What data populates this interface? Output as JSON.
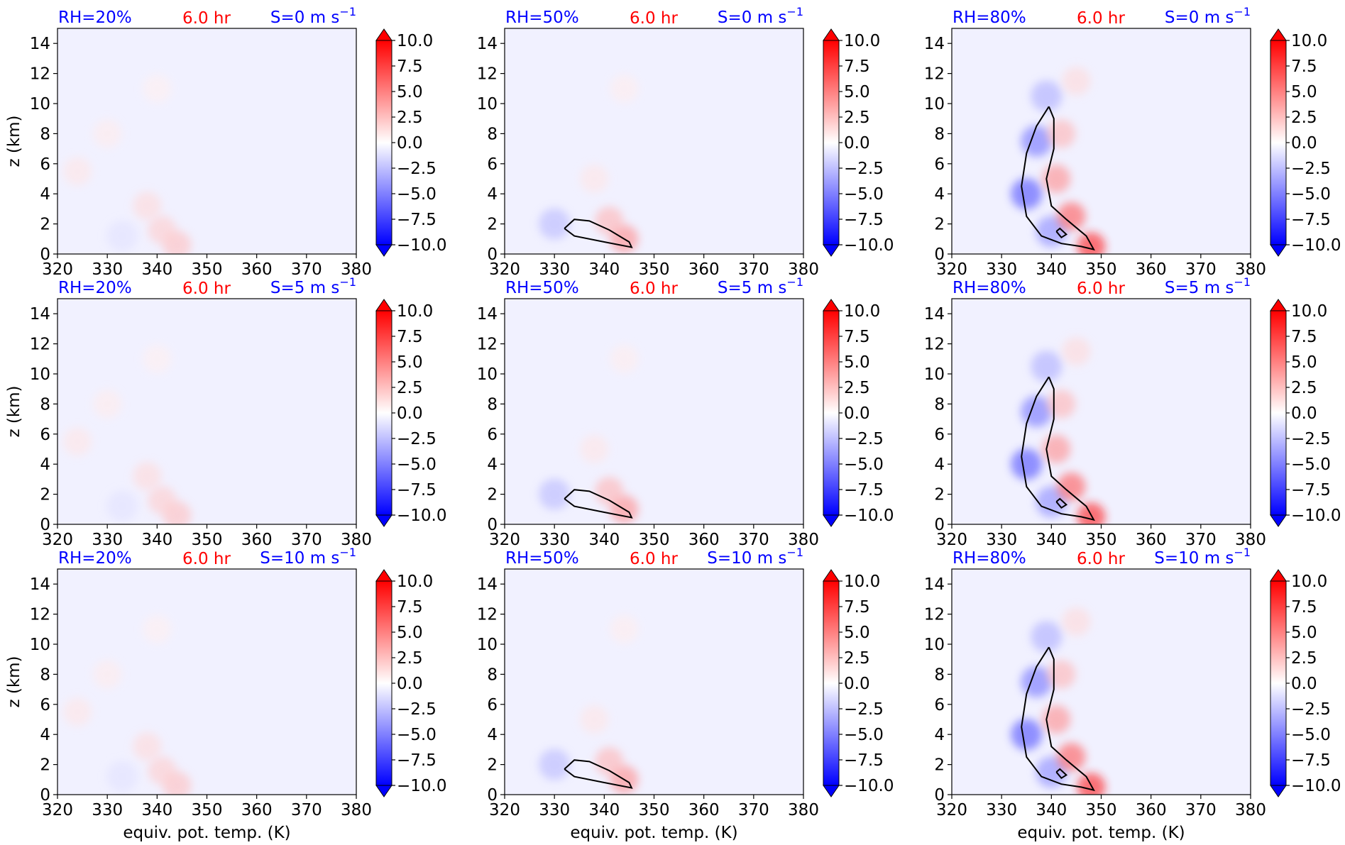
{
  "figure": {
    "xlabel": "equiv. pot. temp. (K)",
    "ylabel": "z (km)"
  },
  "colors": {
    "background_field": "#f1f1ff",
    "rh_label": "#0000ff",
    "time_label": "#ff0000",
    "shear_label": "#0000ff",
    "contour": "#000000",
    "colormap": "bwr"
  },
  "chart_data": {
    "type": "heatmap",
    "panel_grid": {
      "rows": 3,
      "cols": 3
    },
    "xlim": [
      320,
      380
    ],
    "ylim": [
      0,
      15
    ],
    "x_ticks": [
      320,
      330,
      340,
      350,
      360,
      370,
      380
    ],
    "x_tick_labels": [
      "320",
      "330",
      "340",
      "350",
      "360",
      "370",
      "380"
    ],
    "y_ticks": [
      0,
      2,
      4,
      6,
      8,
      10,
      12,
      14
    ],
    "y_tick_labels": [
      "0",
      "2",
      "4",
      "6",
      "8",
      "10",
      "12",
      "14"
    ],
    "colorbar": {
      "range": [
        -10,
        10
      ],
      "extend": "both",
      "ticks": [
        10,
        7.5,
        5,
        2.5,
        0,
        -2.5,
        -5,
        -7.5,
        -10
      ],
      "tick_labels": [
        "10.0",
        "7.5",
        "5.0",
        "2.5",
        "0.0",
        "−2.5",
        "−5.0",
        "−7.5",
        "−10.0"
      ]
    },
    "time_label": "6.0 hr",
    "rh_labels": [
      "RH=20%",
      "RH=50%",
      "RH=80%"
    ],
    "shear_rows": [
      {
        "prefix": "S=0 m s",
        "exp": "−1"
      },
      {
        "prefix": "S=5 m s",
        "exp": "−1"
      },
      {
        "prefix": "S=10 m s",
        "exp": "−1"
      }
    ],
    "features": {
      "RH=20%": {
        "warm_blobs": [
          {
            "theta": 344,
            "z": 0.6,
            "value": 2.5
          },
          {
            "theta": 341,
            "z": 1.6,
            "value": 2.0
          },
          {
            "theta": 338,
            "z": 3.2,
            "value": 1.5
          },
          {
            "theta": 324,
            "z": 5.5,
            "value": 1.0
          },
          {
            "theta": 330,
            "z": 8.0,
            "value": 0.8
          },
          {
            "theta": 340,
            "z": 11.0,
            "value": 0.6
          }
        ],
        "cool_blobs": [
          {
            "theta": 333,
            "z": 1.2,
            "value": -1.2
          }
        ],
        "contours": []
      },
      "RH=50%": {
        "warm_blobs": [
          {
            "theta": 344,
            "z": 1.0,
            "value": 4.5
          },
          {
            "theta": 341,
            "z": 2.2,
            "value": 3.0
          },
          {
            "theta": 338,
            "z": 5.0,
            "value": 1.0
          },
          {
            "theta": 344,
            "z": 11.0,
            "value": 0.7
          }
        ],
        "cool_blobs": [
          {
            "theta": 330,
            "z": 2.0,
            "value": -3.0
          }
        ],
        "contours": [
          [
            [
              332,
              1.7
            ],
            [
              334,
              2.3
            ],
            [
              337,
              2.2
            ],
            [
              341,
              1.6
            ],
            [
              345,
              0.8
            ],
            [
              345.5,
              0.45
            ],
            [
              340,
              0.8
            ],
            [
              334,
              1.2
            ],
            [
              332,
              1.7
            ]
          ]
        ]
      },
      "RH=80%": {
        "warm_blobs": [
          {
            "theta": 348,
            "z": 0.5,
            "value": 9.0
          },
          {
            "theta": 344,
            "z": 2.5,
            "value": 6.5
          },
          {
            "theta": 341,
            "z": 5.0,
            "value": 4.5
          },
          {
            "theta": 342,
            "z": 8.0,
            "value": 3.0
          },
          {
            "theta": 345,
            "z": 11.5,
            "value": 1.5
          }
        ],
        "cool_blobs": [
          {
            "theta": 335,
            "z": 4.0,
            "value": -7.5
          },
          {
            "theta": 337,
            "z": 7.5,
            "value": -6.0
          },
          {
            "theta": 339,
            "z": 10.5,
            "value": -3.5
          },
          {
            "theta": 340,
            "z": 1.5,
            "value": -5.0
          }
        ],
        "contours": [
          [
            [
              339.5,
              9.8
            ],
            [
              337,
              8.5
            ],
            [
              335,
              6.7
            ],
            [
              334,
              4.5
            ],
            [
              335,
              2.5
            ],
            [
              338,
              1.2
            ],
            [
              342,
              0.7
            ],
            [
              346,
              0.5
            ],
            [
              348.5,
              0.3
            ],
            [
              347,
              1.2
            ],
            [
              343,
              2.3
            ],
            [
              340,
              3.2
            ],
            [
              339,
              5.0
            ],
            [
              340.5,
              7.0
            ],
            [
              340.5,
              9.0
            ],
            [
              339.5,
              9.8
            ]
          ],
          [
            [
              341,
              1.5
            ],
            [
              341.7,
              1.7
            ],
            [
              343,
              1.3
            ],
            [
              342,
              1.1
            ],
            [
              341,
              1.5
            ]
          ]
        ]
      }
    }
  }
}
